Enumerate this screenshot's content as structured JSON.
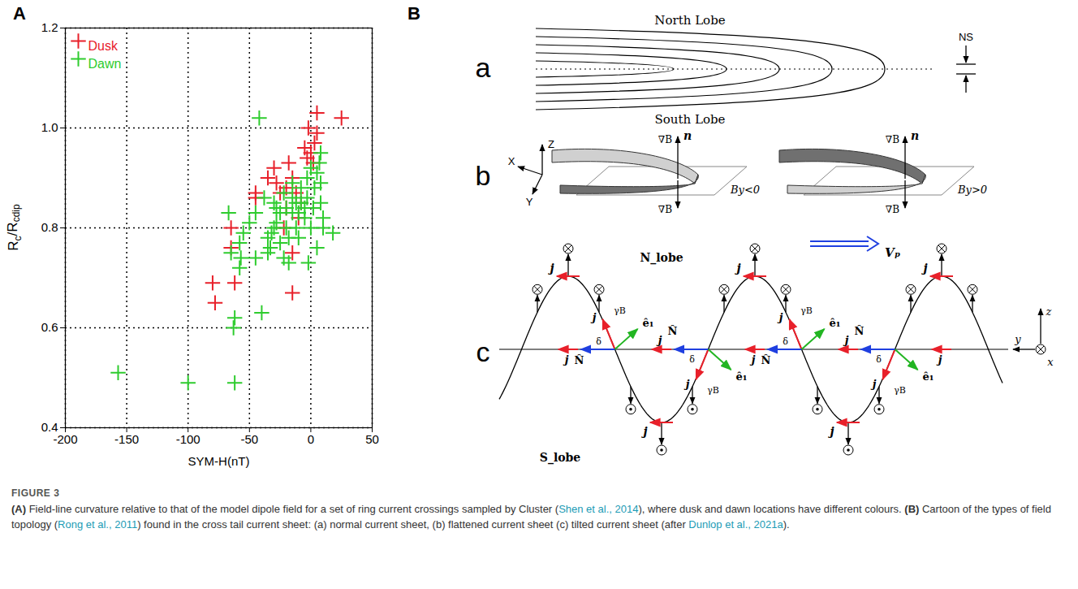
{
  "panel_a": {
    "letter": "A"
  },
  "chart_data": {
    "type": "scatter",
    "xlabel": "SYM-H(nT)",
    "ylabel": "Rc/Rcdip",
    "xlim": [
      -200,
      50
    ],
    "xticks": [
      -200,
      -150,
      -100,
      -50,
      0,
      50
    ],
    "ylim": [
      0.4,
      1.2
    ],
    "yticks": [
      0.4,
      0.6,
      0.8,
      {
        "value": 1,
        "label": "1.0"
      },
      1.2
    ],
    "grid": true,
    "legend": "top-left",
    "series": [
      {
        "name": "Dusk",
        "color": "#e8202a",
        "marker": "plus",
        "x": [
          -80,
          -78,
          -65,
          -65,
          -62,
          -45,
          -45,
          -35,
          -30,
          -28,
          -25,
          -22,
          -20,
          -20,
          -18,
          -15,
          -15,
          -15,
          -12,
          -10,
          -8,
          -5,
          -3,
          -2,
          0,
          2,
          3,
          5,
          5,
          25
        ],
        "values": [
          0.69,
          0.65,
          0.8,
          0.76,
          0.69,
          0.87,
          0.86,
          0.9,
          0.92,
          0.89,
          0.87,
          0.8,
          0.84,
          0.88,
          0.93,
          0.9,
          0.75,
          0.67,
          0.87,
          0.82,
          0.85,
          0.96,
          0.94,
          1.0,
          0.95,
          0.93,
          0.97,
          0.99,
          1.03,
          1.02
        ]
      },
      {
        "name": "Dawn",
        "color": "#2ecc2e",
        "marker": "plus",
        "x": [
          -157,
          -100,
          -62,
          -62,
          -63,
          -65,
          -67,
          -58,
          -57,
          -58,
          -55,
          -50,
          -45,
          -40,
          -42,
          -35,
          -33,
          -32,
          -30,
          -28,
          -25,
          -22,
          -20,
          -20,
          -18,
          -18,
          -15,
          -15,
          -12,
          -12,
          -10,
          -8,
          -8,
          -5,
          -5,
          -3,
          -2,
          0,
          2,
          3,
          5,
          5,
          7,
          8,
          8,
          8,
          10,
          10,
          18,
          -25,
          -28,
          -35,
          -38,
          -22,
          -10,
          -3,
          0,
          -15,
          -30,
          -45
        ],
        "values": [
          0.51,
          0.49,
          0.49,
          0.62,
          0.6,
          0.75,
          0.83,
          0.77,
          0.74,
          0.72,
          0.79,
          0.81,
          0.83,
          0.63,
          1.02,
          0.75,
          0.76,
          0.79,
          0.85,
          0.81,
          0.83,
          0.87,
          0.8,
          0.84,
          0.78,
          0.73,
          0.83,
          0.86,
          0.8,
          0.85,
          0.83,
          0.85,
          0.88,
          0.82,
          0.84,
          0.86,
          0.73,
          0.8,
          0.84,
          0.88,
          0.76,
          0.91,
          0.93,
          0.95,
          0.85,
          0.89,
          0.82,
          0.8,
          0.79,
          0.77,
          0.84,
          0.78,
          0.86,
          0.74,
          0.78,
          0.9,
          0.92,
          0.89,
          0.8,
          0.74
        ]
      }
    ]
  },
  "diagram": {
    "letter": "B",
    "a": {
      "letter": "a",
      "north": "North Lobe",
      "south": "South Lobe",
      "thickness": "NS"
    },
    "b": {
      "letter": "b",
      "axes": {
        "z": "Z",
        "x": "X",
        "y": "Y"
      },
      "gradient": "∇B",
      "normal": "n",
      "cases": [
        "By<0",
        "By>0"
      ]
    },
    "c": {
      "letter": "c",
      "north": "N_lobe",
      "south": "S_lobe",
      "velocity": "Vₚ",
      "current": "j",
      "tangent": "ê₁",
      "angle_b": "γB",
      "normal": "N̂",
      "angle": "δ",
      "axes": {
        "z": "z",
        "y": "y",
        "x": "x"
      }
    }
  },
  "caption": {
    "label": "FIGURE 3",
    "parts": [
      {
        "text": "(A)",
        "bold": true
      },
      {
        "text": " Field-line curvature relative to that of the model dipole field for a set of ring current crossings sampled by Cluster ("
      },
      {
        "text": "Shen et al., 2014",
        "cite": true
      },
      {
        "text": "), where dusk and dawn locations have different colours. "
      },
      {
        "text": "(B)",
        "bold": true
      },
      {
        "text": " Cartoon of the types of field topology ("
      },
      {
        "text": "Rong et al., 2011",
        "cite": true
      },
      {
        "text": ") found in the cross tail current sheet: (a) normal current sheet, (b) flattened current sheet (c) tilted current sheet (after "
      },
      {
        "text": "Dunlop et al., 2021a",
        "cite": true
      },
      {
        "text": ")."
      }
    ]
  }
}
